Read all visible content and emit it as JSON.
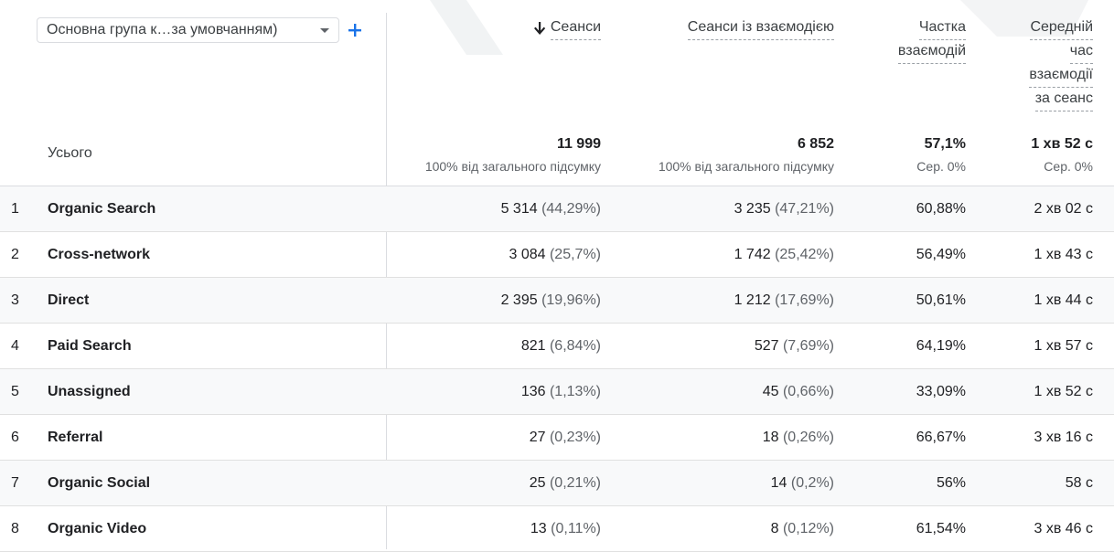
{
  "dimension": {
    "label": "Основна група к…за умовчанням)"
  },
  "columns": {
    "sessions": "Сеанси",
    "engaged": "Сеанси із взаємодією",
    "rate": [
      "Частка",
      "взаємодій"
    ],
    "avg": [
      "Середній",
      "час",
      "взаємодії",
      "за сеанс"
    ]
  },
  "totals": {
    "label": "Усього",
    "sessions": {
      "value": "11 999",
      "sub": "100% від загального підсумку"
    },
    "engaged": {
      "value": "6 852",
      "sub": "100% від загального підсумку"
    },
    "rate": {
      "value": "57,1%",
      "sub": "Сер. 0%"
    },
    "avg": {
      "value": "1 хв 52 с",
      "sub": "Сер. 0%"
    }
  },
  "rows": [
    {
      "idx": "1",
      "name": "Organic Search",
      "sessions": "5 314",
      "sessions_pct": "(44,29%)",
      "engaged": "3 235",
      "engaged_pct": "(47,21%)",
      "rate": "60,88%",
      "avg": "2 хв 02 с"
    },
    {
      "idx": "2",
      "name": "Cross-network",
      "sessions": "3 084",
      "sessions_pct": "(25,7%)",
      "engaged": "1 742",
      "engaged_pct": "(25,42%)",
      "rate": "56,49%",
      "avg": "1 хв 43 с"
    },
    {
      "idx": "3",
      "name": "Direct",
      "sessions": "2 395",
      "sessions_pct": "(19,96%)",
      "engaged": "1 212",
      "engaged_pct": "(17,69%)",
      "rate": "50,61%",
      "avg": "1 хв 44 с"
    },
    {
      "idx": "4",
      "name": "Paid Search",
      "sessions": "821",
      "sessions_pct": "(6,84%)",
      "engaged": "527",
      "engaged_pct": "(7,69%)",
      "rate": "64,19%",
      "avg": "1 хв 57 с"
    },
    {
      "idx": "5",
      "name": "Unassigned",
      "sessions": "136",
      "sessions_pct": "(1,13%)",
      "engaged": "45",
      "engaged_pct": "(0,66%)",
      "rate": "33,09%",
      "avg": "1 хв 52 с"
    },
    {
      "idx": "6",
      "name": "Referral",
      "sessions": "27",
      "sessions_pct": "(0,23%)",
      "engaged": "18",
      "engaged_pct": "(0,26%)",
      "rate": "66,67%",
      "avg": "3 хв 16 с"
    },
    {
      "idx": "7",
      "name": "Organic Social",
      "sessions": "25",
      "sessions_pct": "(0,21%)",
      "engaged": "14",
      "engaged_pct": "(0,2%)",
      "rate": "56%",
      "avg": "58 с"
    },
    {
      "idx": "8",
      "name": "Organic Video",
      "sessions": "13",
      "sessions_pct": "(0,11%)",
      "engaged": "8",
      "engaged_pct": "(0,12%)",
      "rate": "61,54%",
      "avg": "3 хв 46 с"
    }
  ],
  "colors": {
    "accent": "#1a73e8",
    "divider": "#dadce0",
    "alt_row": "#f8f9fa"
  }
}
